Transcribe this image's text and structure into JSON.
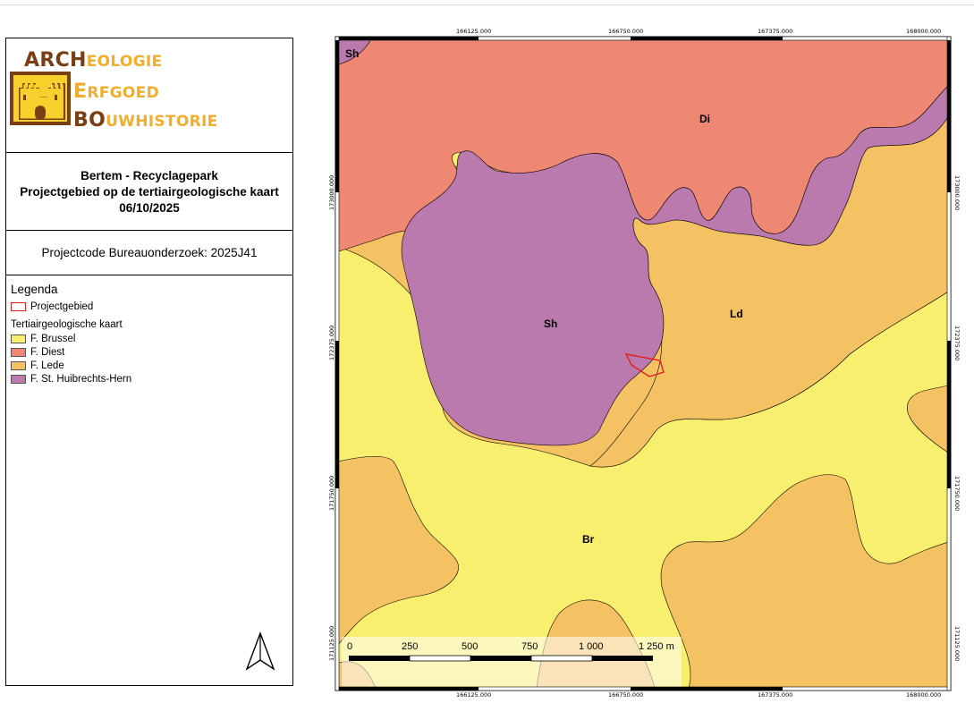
{
  "logo": {
    "line1_cap": "ARCH",
    "line1_small": "EOLOGIE",
    "line2_cap": "E",
    "line2_small": "RFGOED",
    "line3_cap": "BO",
    "line3_small": "UWHISTORIE",
    "colors": {
      "brown": "#7a3e14",
      "gold": "#f1ad2e",
      "yellow": "#f7d02b"
    }
  },
  "title": {
    "line1": "Bertem - Recyclagepark",
    "line2": "Projectgebied op de tertiairgeologische kaart",
    "line3": "06/10/2025"
  },
  "project_code": "Projectcode Bureauonderzoek: 2025J41",
  "legend": {
    "heading": "Legenda",
    "project_area": {
      "label": "Projectgebied",
      "color": "#e02020"
    },
    "subheading": "Tertiairgeologische kaart",
    "items": [
      {
        "label": "F. Brussel",
        "color": "#f8ef6e"
      },
      {
        "label": "F. Diest",
        "color": "#ee8872"
      },
      {
        "label": "F. Lede",
        "color": "#f4c262"
      },
      {
        "label": "F. St. Huibrechts-Hern",
        "color": "#bb7aae"
      }
    ]
  },
  "map": {
    "unit_labels": {
      "sh_corner": "Sh",
      "di": "Di",
      "sh": "Sh",
      "ld": "Ld",
      "br": "Br"
    },
    "x_ticks": [
      "166125.000",
      "166750.000",
      "167375.000",
      "168000.000"
    ],
    "y_ticks": [
      "173000.000",
      "172375.000",
      "171750.000",
      "171125.000"
    ],
    "scalebar": {
      "labels": [
        "0",
        "250",
        "500",
        "750",
        "1 000",
        "1 250 m"
      ]
    },
    "north_arrow": "north-arrow-icon"
  }
}
